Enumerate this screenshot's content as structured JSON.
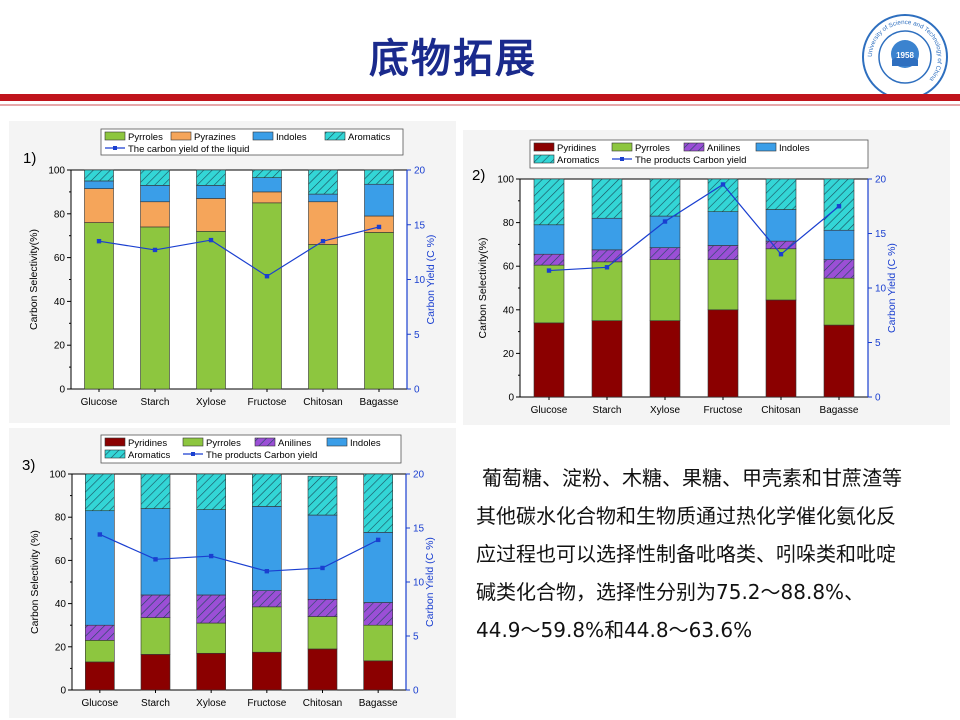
{
  "page": {
    "title": "底物拓展",
    "summary": "葡萄糖、淀粉、木糖、果糖、甲壳素和甘蔗渣等其他碳水化合物和生物质通过热化学催化氨化反应过程也可以选择性制备吡咯类、吲哚类和吡啶碱类化合物，选择性分别为75.2〜88.8%、44.9〜59.8%和44.8〜63.6%",
    "logo": {
      "year": "1958",
      "ring_text": "University of Science and Technology of China",
      "icon": "ustc-seal-icon"
    },
    "colors": {
      "title": "#1a2a8c",
      "rule": "#c0141c"
    }
  },
  "chart_data": [
    {
      "type": "bar",
      "panel_label": "1)",
      "categories": [
        "Glucose",
        "Starch",
        "Xylose",
        "Fructose",
        "Chitosan",
        "Bagasse"
      ],
      "stacked": true,
      "series": [
        {
          "name": "Pyrroles",
          "values": [
            76,
            74,
            72,
            85,
            66,
            71.5
          ],
          "color": "#8dc63f",
          "pattern": "solid"
        },
        {
          "name": "Pyrazines",
          "values": [
            15.5,
            11.5,
            15,
            5,
            19.5,
            7.5
          ],
          "color": "#f5a55a",
          "pattern": "solid"
        },
        {
          "name": "Indoles",
          "values": [
            3.5,
            7.5,
            6,
            6.5,
            3.5,
            14.5
          ],
          "color": "#3a9ee8",
          "pattern": "solid"
        },
        {
          "name": "Aromatics",
          "values": [
            5,
            7,
            7,
            3.5,
            11,
            6.5
          ],
          "color": "#33d6d6",
          "pattern": "hatch"
        }
      ],
      "line": {
        "name": "The carbon yield of the liquid",
        "values": [
          13.5,
          12.7,
          13.6,
          10.3,
          13.5,
          14.8
        ],
        "color": "#1a3fd0"
      },
      "ylabel": "Carbon Selectivity(%)",
      "y2label": "Carbon Yield (C %)",
      "ylim": [
        0,
        100
      ],
      "y2lim": [
        0,
        20
      ],
      "yticks": [
        "0",
        "20",
        "40",
        "60",
        "80",
        "100"
      ],
      "y2ticks": [
        "0",
        "5",
        "10",
        "15",
        "20"
      ],
      "legend_columns": 4,
      "legend": "top"
    },
    {
      "type": "bar",
      "panel_label": "2)",
      "categories": [
        "Glucose",
        "Starch",
        "Xylose",
        "Fructose",
        "Chitosan",
        "Bagasse"
      ],
      "stacked": true,
      "series": [
        {
          "name": "Pyridines",
          "values": [
            34,
            35,
            35,
            40,
            44.5,
            33
          ],
          "color": "#8b0000",
          "pattern": "solid"
        },
        {
          "name": "Pyrroles",
          "values": [
            26.5,
            27,
            28,
            23,
            23.5,
            21.5
          ],
          "color": "#8dc63f",
          "pattern": "solid"
        },
        {
          "name": "Anilines",
          "values": [
            5,
            5.5,
            5.5,
            6.5,
            3.5,
            8.5
          ],
          "color": "#9b4fd6",
          "pattern": "hatch"
        },
        {
          "name": "Indoles",
          "values": [
            13.5,
            14.5,
            14.5,
            15.5,
            14.5,
            13.5
          ],
          "color": "#3a9ee8",
          "pattern": "solid"
        },
        {
          "name": "Aromatics",
          "values": [
            21,
            18,
            17,
            15,
            14,
            23.5
          ],
          "color": "#33d6d6",
          "pattern": "hatch"
        }
      ],
      "line": {
        "name": "The products Carbon yield",
        "values": [
          11.6,
          11.9,
          16.1,
          19.5,
          13.1,
          17.5
        ],
        "color": "#1a3fd0"
      },
      "ylabel": "Carbon Selectivity(%)",
      "y2label": "Carbon Yield (C %)",
      "ylim": [
        0,
        100
      ],
      "y2lim": [
        0,
        20
      ],
      "yticks": [
        "0",
        "20",
        "40",
        "60",
        "80",
        "100"
      ],
      "y2ticks": [
        "0",
        "5",
        "10",
        "15",
        "20"
      ],
      "legend_columns": 4,
      "legend": "top"
    },
    {
      "type": "bar",
      "panel_label": "3)",
      "categories": [
        "Glucose",
        "Starch",
        "Xylose",
        "Fructose",
        "Chitosan",
        "Bagasse"
      ],
      "stacked": true,
      "series": [
        {
          "name": "Pyridines",
          "values": [
            13,
            16.5,
            17,
            17.5,
            19,
            13.5
          ],
          "color": "#8b0000",
          "pattern": "solid"
        },
        {
          "name": "Pyrroles",
          "values": [
            10,
            17,
            14,
            21,
            15,
            16.5
          ],
          "color": "#8dc63f",
          "pattern": "solid"
        },
        {
          "name": "Anilines",
          "values": [
            7,
            10.5,
            13,
            7.5,
            8,
            10.5
          ],
          "color": "#9b4fd6",
          "pattern": "hatch"
        },
        {
          "name": "Indoles",
          "values": [
            53,
            40,
            39.5,
            39,
            39,
            32.5
          ],
          "color": "#3a9ee8",
          "pattern": "solid"
        },
        {
          "name": "Aromatics",
          "values": [
            17,
            16,
            16.5,
            15,
            18,
            27
          ],
          "color": "#33d6d6",
          "pattern": "hatch"
        }
      ],
      "line": {
        "name": "The products Carbon yield",
        "values": [
          14.4,
          12.1,
          12.4,
          11.0,
          11.3,
          13.9
        ],
        "color": "#1a3fd0"
      },
      "ylabel": "Carbon Selectivity (%)",
      "y2label": "Carbon Yield (C %)",
      "ylim": [
        0,
        100
      ],
      "y2lim": [
        0,
        20
      ],
      "yticks": [
        "0",
        "20",
        "40",
        "60",
        "80",
        "100"
      ],
      "y2ticks": [
        "0",
        "5",
        "10",
        "15",
        "20"
      ],
      "legend_columns": 4,
      "legend": "top"
    }
  ]
}
